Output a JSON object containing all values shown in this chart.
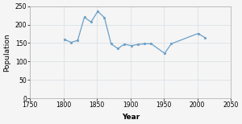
{
  "years": [
    1801,
    1811,
    1821,
    1831,
    1841,
    1851,
    1861,
    1871,
    1881,
    1891,
    1901,
    1911,
    1921,
    1931,
    1951,
    1961,
    2001,
    2011
  ],
  "population": [
    160,
    152,
    157,
    220,
    207,
    236,
    219,
    148,
    135,
    147,
    143,
    146,
    148,
    148,
    122,
    148,
    176,
    165
  ],
  "xlim": [
    1750,
    2050
  ],
  "ylim": [
    0,
    250
  ],
  "yticks": [
    0,
    50,
    100,
    150,
    200,
    250
  ],
  "xticks": [
    1750,
    1800,
    1850,
    1900,
    1950,
    2000,
    2050
  ],
  "xlabel": "Year",
  "ylabel": "Population",
  "line_color": "#6ca0c8",
  "marker": "o",
  "marker_size": 2.0,
  "line_width": 0.9,
  "grid_color": "#d5dde5",
  "background_color": "#f5f5f5",
  "tick_label_fontsize": 5.5,
  "label_fontsize": 6.5
}
